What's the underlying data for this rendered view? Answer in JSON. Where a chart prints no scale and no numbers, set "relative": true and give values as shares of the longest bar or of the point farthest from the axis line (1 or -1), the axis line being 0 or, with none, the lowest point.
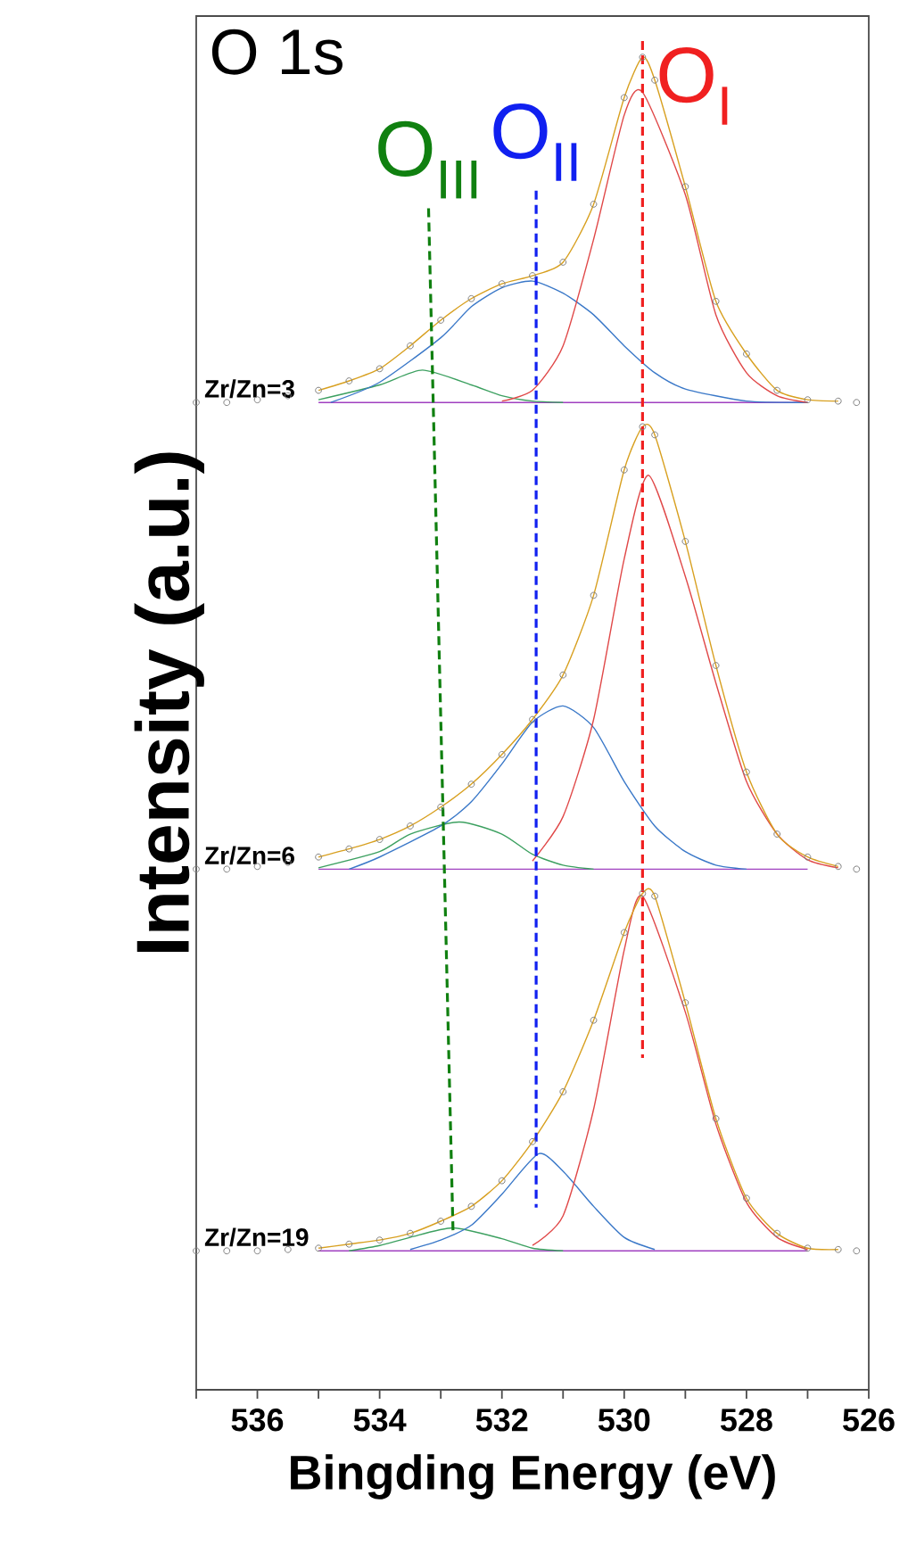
{
  "chart_data": {
    "type": "line",
    "xlabel": "Bingding Energy (eV)",
    "ylabel": "Intensity (a.u.)",
    "relative": true,
    "grid": false,
    "xlim": [
      537,
      526
    ],
    "xticks": [
      {
        "value": 537,
        "label": null
      },
      536,
      {
        "value": 535,
        "label": null
      },
      534,
      {
        "value": 533,
        "label": null
      },
      532,
      {
        "value": 531,
        "label": null
      },
      530,
      {
        "value": 529,
        "label": null
      },
      528,
      {
        "value": 527,
        "label": null
      },
      526
    ],
    "annotations": [
      "O 1s"
    ],
    "series": [
      {
        "color": "#a040c0",
        "x": [
          535,
          527
        ],
        "values": [
          0.732,
          0.732
        ]
      },
      {
        "color": "#3ca060",
        "x": [
          535,
          534,
          533.3,
          532.5,
          532,
          531.5,
          531
        ],
        "values": [
          0.734,
          0.745,
          0.756,
          0.745,
          0.737,
          0.733,
          0.732
        ]
      },
      {
        "color": "#3a78c8",
        "x": [
          534.8,
          534,
          533,
          532.5,
          532,
          531.5,
          531,
          530.5,
          530,
          529.5,
          529,
          528,
          527
        ],
        "values": [
          0.732,
          0.747,
          0.78,
          0.803,
          0.817,
          0.822,
          0.813,
          0.797,
          0.774,
          0.754,
          0.742,
          0.733,
          0.732
        ]
      },
      {
        "color": "#e04848",
        "x": [
          532,
          531.5,
          531,
          530.5,
          530,
          529.7,
          529,
          528.5,
          528,
          527.5,
          527
        ],
        "values": [
          0.733,
          0.741,
          0.774,
          0.853,
          0.945,
          0.962,
          0.886,
          0.797,
          0.754,
          0.737,
          0.732
        ]
      },
      {
        "color": "#d8a020",
        "x": [
          535,
          534.5,
          534,
          533.5,
          533,
          532.5,
          532,
          531.5,
          531,
          530.5,
          530,
          529.7,
          529.5,
          529,
          528.5,
          528,
          527.5,
          527,
          526.5
        ],
        "values": [
          0.741,
          0.748,
          0.757,
          0.774,
          0.793,
          0.809,
          0.82,
          0.826,
          0.836,
          0.879,
          0.958,
          0.988,
          0.971,
          0.892,
          0.807,
          0.768,
          0.741,
          0.734,
          0.733
        ]
      },
      {
        "color": "#a040c0",
        "x": [
          535,
          527
        ],
        "values": [
          0.386,
          0.386
        ]
      },
      {
        "color": "#3ca060",
        "x": [
          535,
          534,
          533.5,
          532.7,
          532,
          531.5,
          531,
          530.5
        ],
        "values": [
          0.387,
          0.399,
          0.412,
          0.421,
          0.412,
          0.397,
          0.389,
          0.386
        ]
      },
      {
        "color": "#3a78c8",
        "x": [
          534.5,
          534,
          533,
          532.5,
          532,
          531.5,
          531,
          530.5,
          530,
          529.5,
          529,
          528.5,
          528
        ],
        "values": [
          0.386,
          0.395,
          0.418,
          0.436,
          0.464,
          0.495,
          0.507,
          0.491,
          0.451,
          0.418,
          0.399,
          0.389,
          0.386
        ]
      },
      {
        "color": "#e04848",
        "x": [
          531.5,
          531,
          530.5,
          530,
          529.6,
          529,
          528.5,
          528,
          527.5,
          527,
          526.5
        ],
        "values": [
          0.392,
          0.425,
          0.497,
          0.616,
          0.678,
          0.603,
          0.524,
          0.451,
          0.412,
          0.393,
          0.387
        ]
      },
      {
        "color": "#d8a020",
        "x": [
          535,
          534.5,
          534,
          533.5,
          533,
          532.5,
          532,
          531.5,
          531,
          530.5,
          530,
          529.7,
          529.5,
          529,
          528.5,
          528,
          527.5,
          527,
          526.5
        ],
        "values": [
          0.395,
          0.401,
          0.408,
          0.418,
          0.432,
          0.449,
          0.471,
          0.497,
          0.53,
          0.589,
          0.682,
          0.714,
          0.708,
          0.629,
          0.537,
          0.458,
          0.412,
          0.395,
          0.388
        ]
      },
      {
        "color": "#a040c0",
        "x": [
          535,
          527
        ],
        "values": [
          0.103,
          0.103
        ]
      },
      {
        "color": "#3ca060",
        "x": [
          534.5,
          534,
          533.5,
          532.8,
          532,
          531.5,
          531
        ],
        "values": [
          0.103,
          0.107,
          0.113,
          0.12,
          0.112,
          0.105,
          0.103
        ]
      },
      {
        "color": "#3a78c8",
        "x": [
          533.5,
          533,
          532.5,
          532,
          531.4,
          531,
          530.5,
          530,
          529.5
        ],
        "values": [
          0.104,
          0.111,
          0.122,
          0.145,
          0.175,
          0.162,
          0.136,
          0.113,
          0.104
        ]
      },
      {
        "color": "#e04848",
        "x": [
          531.5,
          531,
          530.5,
          530,
          529.7,
          529,
          528.5,
          528,
          527.5,
          527
        ],
        "values": [
          0.107,
          0.129,
          0.208,
          0.326,
          0.366,
          0.28,
          0.197,
          0.139,
          0.113,
          0.104
        ]
      },
      {
        "color": "#d8a020",
        "x": [
          535,
          534.5,
          534,
          533.5,
          533,
          532.5,
          532,
          531.5,
          531,
          530.5,
          530,
          529.7,
          529.5,
          529,
          528.5,
          528,
          527.5,
          527,
          526.5
        ],
        "values": [
          0.105,
          0.108,
          0.111,
          0.116,
          0.125,
          0.136,
          0.155,
          0.184,
          0.221,
          0.274,
          0.339,
          0.368,
          0.366,
          0.287,
          0.201,
          0.142,
          0.116,
          0.105,
          0.104
        ]
      },
      {
        "type": "scatter",
        "name": "Zr/Zn=3",
        "marker": "circle",
        "color": "#808080",
        "x": [
          537,
          536.5,
          536,
          535.5,
          535,
          534.5,
          534,
          533.5,
          533,
          532.5,
          532,
          531.5,
          531,
          530.5,
          530,
          529.7,
          529.5,
          529,
          528.5,
          528,
          527.5,
          527,
          526.5,
          526.2
        ],
        "values": [
          0.732,
          0.732,
          0.734,
          0.737,
          0.741,
          0.748,
          0.757,
          0.774,
          0.793,
          0.809,
          0.82,
          0.826,
          0.836,
          0.879,
          0.958,
          0.988,
          0.971,
          0.892,
          0.807,
          0.768,
          0.741,
          0.734,
          0.733,
          0.732
        ]
      },
      {
        "type": "scatter",
        "name": "Zr/Zn=6",
        "marker": "circle",
        "color": "#808080",
        "x": [
          537,
          536.5,
          536,
          535.5,
          535,
          534.5,
          534,
          533.5,
          533,
          532.5,
          532,
          531.5,
          531,
          530.5,
          530,
          529.7,
          529.5,
          529,
          528.5,
          528,
          527.5,
          527,
          526.5,
          526.2
        ],
        "values": [
          0.386,
          0.386,
          0.388,
          0.391,
          0.395,
          0.401,
          0.408,
          0.418,
          0.432,
          0.449,
          0.471,
          0.497,
          0.53,
          0.589,
          0.682,
          0.714,
          0.708,
          0.629,
          0.537,
          0.458,
          0.412,
          0.395,
          0.388,
          0.386
        ]
      },
      {
        "type": "scatter",
        "name": "Zr/Zn=19",
        "marker": "circle",
        "color": "#808080",
        "x": [
          537,
          536.5,
          536,
          535.5,
          535,
          534.5,
          534,
          533.5,
          533,
          532.5,
          532,
          531.5,
          531,
          530.5,
          530,
          529.7,
          529.5,
          529,
          528.5,
          528,
          527.5,
          527,
          526.5,
          526.2
        ],
        "values": [
          0.103,
          0.103,
          0.103,
          0.104,
          0.105,
          0.108,
          0.111,
          0.116,
          0.125,
          0.136,
          0.155,
          0.184,
          0.221,
          0.274,
          0.339,
          0.368,
          0.366,
          0.287,
          0.201,
          0.142,
          0.116,
          0.105,
          0.104,
          0.103
        ]
      },
      {
        "name": "O$_{I}$",
        "line_style": "dashed",
        "color": "#f02020",
        "x": [
          529.7,
          529.7
        ],
        "values": [
          1.0,
          0.246
        ]
      },
      {
        "name": "O$_{II}$",
        "line_style": "dashed",
        "color": "#1020f0",
        "x": [
          531.44,
          531.44
        ],
        "values": [
          0.889,
          0.135
        ]
      },
      {
        "name": "O$_{III}$",
        "line_style": "dashed",
        "color": "#108010",
        "x": [
          533.2,
          532.8
        ],
        "values": [
          0.876,
          0.118
        ]
      }
    ]
  }
}
